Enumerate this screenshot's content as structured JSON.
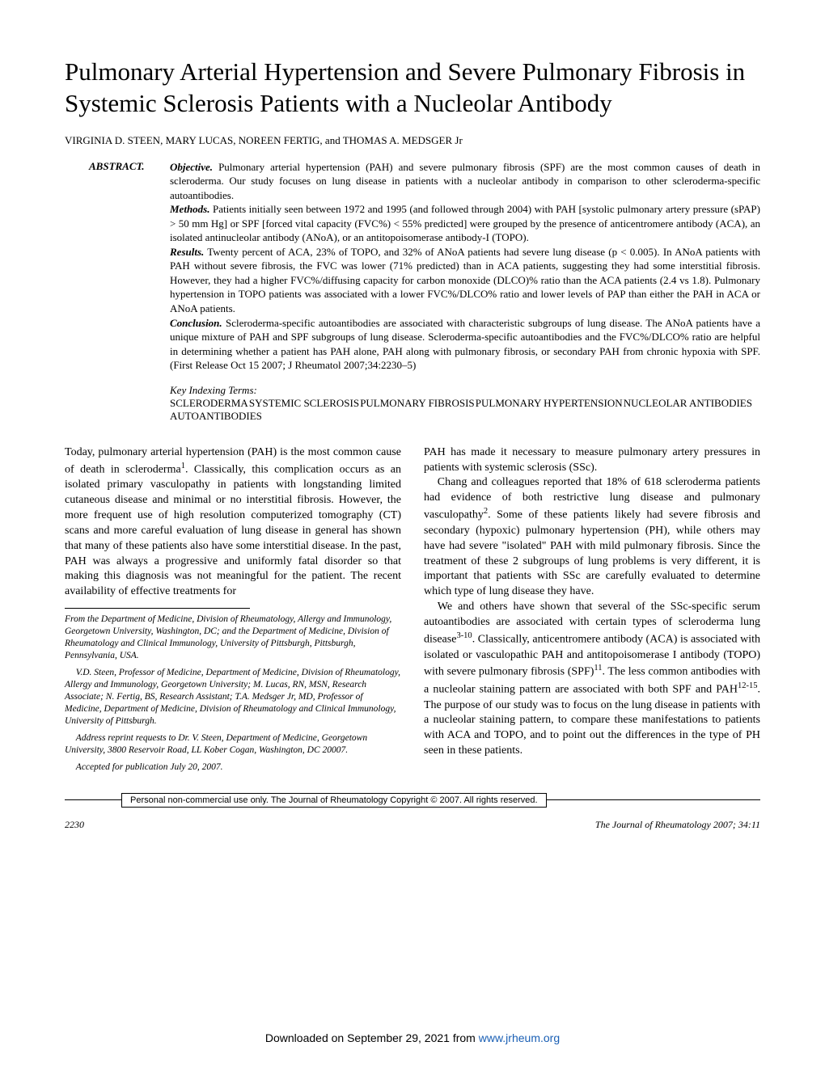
{
  "title": "Pulmonary Arterial Hypertension and Severe Pulmonary Fibrosis in Systemic Sclerosis Patients with a Nucleolar Antibody",
  "authors": "VIRGINIA D. STEEN, MARY LUCAS, NOREEN FERTIG, and THOMAS A. MEDSGER Jr",
  "abstract": {
    "label": "ABSTRACT.",
    "objective_label": "Objective.",
    "objective": " Pulmonary arterial hypertension (PAH) and severe pulmonary fibrosis (SPF) are the most common causes of death in scleroderma. Our study focuses on lung disease in patients with a nucleolar antibody in comparison to other scleroderma-specific autoantibodies.",
    "methods_label": "Methods.",
    "methods": " Patients initially seen between 1972 and 1995 (and followed through 2004) with PAH [systolic pulmonary artery pressure (sPAP)  > 50 mm Hg] or SPF [forced vital capacity (FVC%) < 55% predicted] were grouped by the presence of anticentromere antibody (ACA), an isolated antinucleolar antibody (ANoA), or an antitopoisomerase antibody-I (TOPO).",
    "results_label": "Results.",
    "results": " Twenty percent of ACA, 23% of TOPO, and 32% of ANoA patients had severe lung disease (p < 0.005). In ANoA patients with PAH without severe fibrosis, the FVC was lower (71% predicted) than in ACA patients, suggesting they had some interstitial fibrosis. However, they had a higher FVC%/diffusing capacity for carbon monoxide (DLCO)% ratio than the ACA patients (2.4 vs 1.8). Pulmonary hypertension in TOPO patients was associated with a lower FVC%/DLCO% ratio and lower levels of PAP than either the PAH in ACA or ANoA patients.",
    "conclusion_label": "Conclusion.",
    "conclusion": " Scleroderma-specific autoantibodies are associated with characteristic subgroups of lung disease. The ANoA patients have a unique mixture of PAH and SPF subgroups of lung disease. Scleroderma-specific autoantibodies and the FVC%/DLCO% ratio are helpful in determining whether a patient has PAH alone, PAH along with pulmonary fibrosis, or secondary PAH from chronic hypoxia with SPF. (First Release Oct 15 2007; J Rheumatol 2007;34:2230–5)"
  },
  "kit": {
    "label": "Key Indexing Terms:",
    "terms": [
      "SCLERODERMA",
      "SYSTEMIC SCLEROSIS",
      "PULMONARY FIBROSIS",
      "PULMONARY HYPERTENSION",
      "NUCLEOLAR ANTIBODIES",
      "AUTOANTIBODIES"
    ]
  },
  "body": {
    "left_p1_a": "Today, pulmonary arterial hypertension (PAH) is the most common cause of death in scleroderma",
    "left_p1_b": ". Classically, this complication occurs as an isolated primary vasculopathy in patients with longstanding limited cutaneous disease and minimal or no interstitial fibrosis. However, the more frequent use of high resolution computerized tomography (CT) scans and more careful evaluation of lung disease in general has shown that many of these patients also have some interstitial disease. In the past, PAH was always a progressive and uniformly fatal disorder so that making this diagnosis was not meaningful for the patient. The recent availability of effective treatments for",
    "right_p1": "PAH has made it necessary to measure pulmonary artery pressures in patients with systemic sclerosis (SSc).",
    "right_p2_a": "Chang and colleagues reported that 18% of 618 scleroderma patients had evidence of both restrictive lung disease and pulmonary vasculopathy",
    "right_p2_b": ". Some of these patients likely had severe fibrosis and secondary (hypoxic) pulmonary hypertension (PH), while others may have had severe \"isolated\" PAH with mild pulmonary fibrosis. Since the treatment of these 2 subgroups of lung problems is very different, it is important that patients with SSc are carefully evaluated to determine which type of lung disease they have.",
    "right_p3_a": "We and others have shown that several of the SSc-specific serum autoantibodies are associated with certain types of scleroderma lung disease",
    "right_p3_b": ". Classically, anticentromere antibody (ACA) is associated with isolated or vasculopathic PAH and antitopoisomerase I antibody (TOPO) with severe pulmonary fibrosis (SPF)",
    "right_p3_c": ". The less common antibodies with a nucleolar staining pattern are associated with both SPF and PAH",
    "right_p3_d": ". The purpose of our study was to focus on the lung disease in patients with a nucleolar staining pattern, to compare these manifestations to patients with ACA and TOPO, and to point out the differences in the type of PH seen in these patients."
  },
  "affil": {
    "p1": "From the Department of Medicine, Division of Rheumatology, Allergy and Immunology, Georgetown University, Washington, DC; and the Department of Medicine, Division of Rheumatology and Clinical Immunology, University of Pittsburgh, Pittsburgh, Pennsylvania, USA.",
    "p2": "V.D. Steen, Professor of Medicine, Department of Medicine, Division of Rheumatology, Allergy and Immunology, Georgetown University; M. Lucas, RN, MSN, Research Associate; N. Fertig, BS, Research Assistant; T.A. Medsger Jr, MD, Professor of Medicine, Department of Medicine, Division of Rheumatology and Clinical Immunology, University of Pittsburgh.",
    "p3": "Address reprint requests to Dr. V. Steen, Department of Medicine, Georgetown University, 3800 Reservoir Road, LL Kober Cogan, Washington, DC 20007.",
    "p4": "Accepted for publication July 20, 2007."
  },
  "copyright": "Personal non-commercial use only. The Journal of Rheumatology Copyright © 2007. All rights reserved.",
  "footer": {
    "page": "2230",
    "journal": "The Journal of Rheumatology 2007; 34:11"
  },
  "download": {
    "text": "Downloaded on September 29, 2021 from ",
    "link": "www.jrheum.org"
  }
}
